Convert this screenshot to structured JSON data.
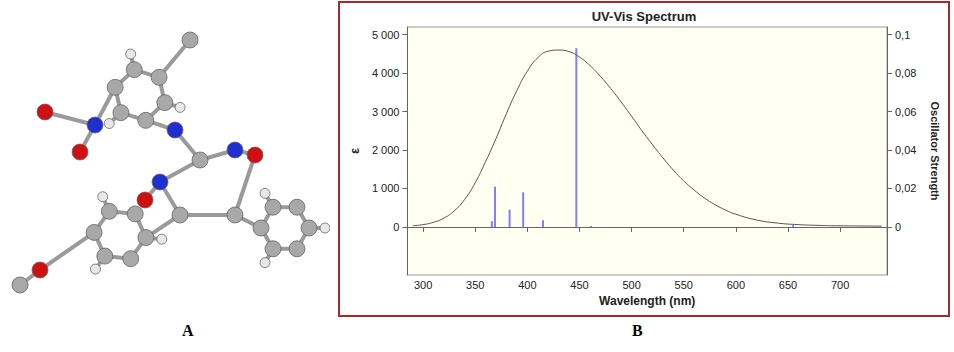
{
  "panel_labels": [
    "A",
    "B"
  ],
  "chart_data": {
    "type": "line",
    "title": "UV-Vis Spectrum",
    "x_label": "Wavelength (nm)",
    "y_label": "ε",
    "y2_label": "Oscillator Strength",
    "xlim": [
      285,
      745
    ],
    "xticks": [
      300,
      350,
      400,
      450,
      500,
      550,
      600,
      650,
      700
    ],
    "ylim": [
      -1250,
      5200
    ],
    "yticks": [
      0,
      {
        "value": 1000,
        "label": "1 000"
      },
      {
        "value": 2000,
        "label": "2 000"
      },
      {
        "value": 3000,
        "label": "3 000"
      },
      {
        "value": 4000,
        "label": "4 000"
      },
      {
        "value": 5000,
        "label": "5 000"
      }
    ],
    "y2lim": [
      -0.025,
      0.104
    ],
    "y2ticks": [
      0,
      {
        "value": 0.02,
        "label": "0,02"
      },
      {
        "value": 0.04,
        "label": "0,04"
      },
      {
        "value": 0.06,
        "label": "0,06"
      },
      {
        "value": 0.08,
        "label": "0,08"
      },
      {
        "value": 0.1,
        "label": "0,1"
      }
    ],
    "grid": false,
    "series": [
      {
        "type": "line",
        "color": "#555555",
        "x": [
          290,
          300,
          310,
          320,
          330,
          340,
          350,
          360,
          370,
          380,
          390,
          400,
          410,
          420,
          430,
          440,
          450,
          460,
          470,
          480,
          490,
          500,
          510,
          520,
          530,
          540,
          550,
          560,
          570,
          580,
          590,
          600,
          620,
          640,
          660,
          680,
          700,
          720,
          740
        ],
        "values": [
          30,
          60,
          120,
          230,
          420,
          720,
          1150,
          1700,
          2300,
          2950,
          3550,
          4050,
          4400,
          4570,
          4600,
          4560,
          4420,
          4200,
          3920,
          3600,
          3250,
          2880,
          2500,
          2140,
          1800,
          1480,
          1200,
          960,
          750,
          580,
          440,
          330,
          180,
          100,
          60,
          40,
          30,
          25,
          20
        ]
      },
      {
        "type": "bar",
        "axis": "y2",
        "color": "#7f7fff",
        "x": [
          366,
          369,
          383,
          396,
          415,
          447,
          461,
          655
        ],
        "values": [
          0.003,
          0.021,
          0.009,
          0.018,
          0.0035,
          0.093,
          0.0005,
          0.001
        ]
      }
    ]
  }
}
